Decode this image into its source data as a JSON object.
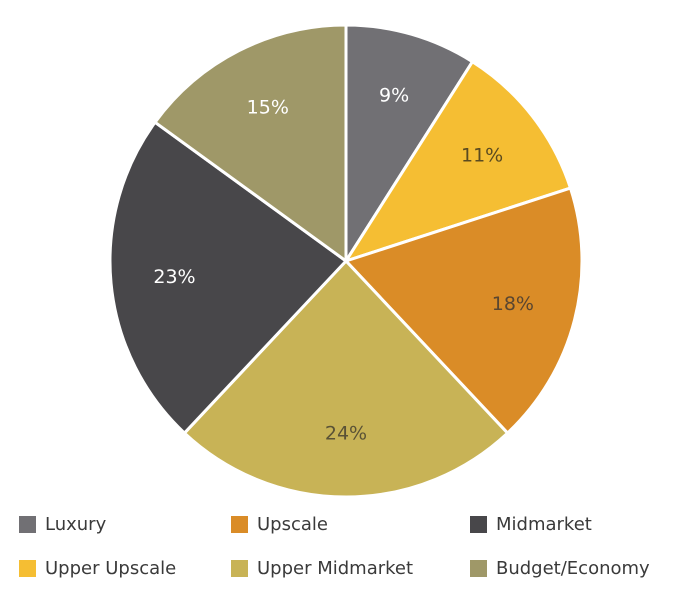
{
  "chart_data": {
    "type": "pie",
    "title": "",
    "start_angle_deg": 0,
    "direction": "clockwise",
    "slices": [
      {
        "name": "Luxury",
        "value": 9,
        "label": "9%",
        "color": "#717074",
        "label_color": "#ffffff"
      },
      {
        "name": "Upper Upscale",
        "value": 11,
        "label": "11%",
        "color": "#f5be33",
        "label_color": "#5a4a20"
      },
      {
        "name": "Upscale",
        "value": 18,
        "label": "18%",
        "color": "#da8c27",
        "label_color": "#5a4630"
      },
      {
        "name": "Upper Midmarket",
        "value": 24,
        "label": "24%",
        "color": "#c8b356",
        "label_color": "#5a5236"
      },
      {
        "name": "Midmarket",
        "value": 23,
        "label": "23%",
        "color": "#48474a",
        "label_color": "#ffffff"
      },
      {
        "name": "Budget/Economy",
        "value": 15,
        "label": "15%",
        "color": "#9f9868",
        "label_color": "#ffffff"
      }
    ],
    "legend": {
      "placement": "bottom",
      "rows": [
        [
          "Luxury",
          "Upscale",
          "Midmarket"
        ],
        [
          "Upper Upscale",
          "Upper Midmarket",
          "Budget/Economy"
        ]
      ]
    }
  }
}
